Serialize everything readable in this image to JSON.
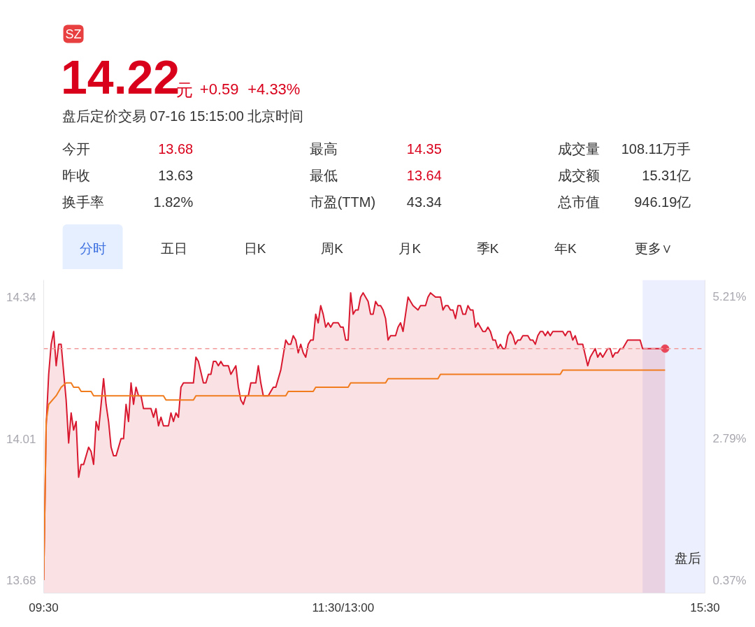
{
  "chart_data": {
    "type": "area",
    "annotations": [
      "SZ",
      "14.22",
      "元",
      "+0.59",
      "+4.33%",
      "盘后定价交易 07-16 15:15:00 北京时间",
      "今开",
      "13.68",
      "最高",
      "14.35",
      "成交量",
      "108.11万手",
      "昨收",
      "13.63",
      "最低",
      "13.64",
      "成交额",
      "15.31亿",
      "换手率",
      "1.82%",
      "市盈(TTM)",
      "43.34",
      "总市值",
      "946.19亿",
      "分时",
      "五日",
      "日K",
      "周K",
      "月K",
      "季K",
      "年K",
      "更多∨",
      "盘后"
    ],
    "categories": [
      "09:30",
      null,
      null,
      null,
      null,
      null,
      null,
      null,
      null,
      null,
      null,
      null,
      null,
      null,
      null,
      null,
      null,
      null,
      null,
      null,
      null,
      null,
      null,
      null,
      null,
      null,
      null,
      null,
      null,
      null,
      null,
      null,
      null,
      null,
      null,
      null,
      null,
      null,
      null,
      null,
      null,
      null,
      null,
      null,
      null,
      null,
      null,
      null,
      null,
      null,
      null,
      null,
      null,
      null,
      null,
      null,
      null,
      null,
      null,
      null,
      null,
      null,
      null,
      null,
      null,
      null,
      null,
      null,
      null,
      null,
      null,
      null,
      null,
      null,
      null,
      null,
      null,
      null,
      null,
      null,
      null,
      null,
      null,
      null,
      null,
      null,
      null,
      null,
      null,
      null,
      null,
      null,
      null,
      null,
      null,
      null,
      null,
      null,
      null,
      null,
      null,
      null,
      null,
      null,
      null,
      null,
      null,
      null,
      null,
      null,
      null,
      null,
      null,
      null,
      null,
      null,
      null,
      null,
      null,
      null,
      "11:30/13:00",
      null,
      null,
      null,
      null,
      null,
      null,
      null,
      null,
      null,
      null,
      null,
      null,
      null,
      null,
      null,
      null,
      null,
      null,
      null,
      null,
      null,
      null,
      null,
      null,
      null,
      null,
      null,
      null,
      null,
      null,
      null,
      null,
      null,
      null,
      null,
      null,
      null,
      null,
      null,
      null,
      null,
      null,
      null,
      null,
      null,
      null,
      null,
      null,
      null,
      null,
      null,
      null,
      null,
      null,
      null,
      null,
      null,
      null,
      null,
      null,
      null,
      null,
      null,
      null,
      null,
      null,
      null,
      null,
      null,
      null,
      null,
      null,
      null,
      null,
      null,
      null,
      null,
      null,
      null,
      null,
      null,
      null,
      null,
      null,
      null,
      null,
      null,
      null,
      null,
      null,
      null,
      null,
      null,
      null,
      null,
      null,
      null,
      null,
      null,
      null,
      null,
      null,
      null,
      null,
      null,
      null,
      null,
      null,
      null,
      null,
      null,
      null,
      null,
      null,
      null,
      null,
      null,
      null,
      null,
      null,
      null,
      null,
      null,
      null,
      null,
      null,
      null,
      null,
      null,
      null,
      null,
      null,
      null,
      null,
      null,
      null,
      null,
      null,
      null,
      null,
      null,
      null,
      null,
      null,
      "15:30"
    ],
    "ylim": [
      13.65,
      14.38
    ],
    "yticks": [
      13.68,
      14.01,
      14.34
    ],
    "y2lim": [
      0.15,
      5.5
    ],
    "y2ticks": [
      {
        "value": 0.37,
        "label": "0.37%"
      },
      {
        "value": 2.79,
        "label": "2.79%"
      },
      {
        "value": 5.21,
        "label": "5.21%"
      }
    ],
    "grid": false,
    "ref_lines": [
      {
        "axis": "y",
        "value": 14.22,
        "color": "#f29a9a",
        "line_style": "dashed"
      }
    ],
    "series": [
      {
        "color": "#d9192f",
        "values": [
          13.68,
          14.04,
          14.16,
          14.23,
          14.26,
          14.18,
          14.23,
          14.23,
          null,
          14.1,
          14.0,
          14.07,
          14.03,
          14.05,
          13.92,
          13.95,
          13.95,
          null,
          13.99,
          13.98,
          13.95,
          14.05,
          14.03,
          null,
          14.15,
          14.09,
          14.05,
          13.99,
          13.97,
          13.97,
          null,
          14.01,
          14.01,
          14.09,
          14.05,
          14.14,
          14.09,
          14.13,
          14.11,
          14.11,
          14.08,
          14.08,
          14.08,
          14.08,
          14.06,
          14.08,
          14.04,
          14.06,
          14.04,
          null,
          14.04,
          14.07,
          14.05,
          14.07,
          14.06,
          14.13,
          14.14,
          14.14,
          14.14,
          14.14,
          14.14,
          14.2,
          14.19,
          null,
          14.14,
          14.14,
          14.16,
          14.16,
          14.19,
          14.19,
          14.18,
          14.19,
          14.18,
          null,
          14.18,
          14.16,
          null,
          14.18,
          14.13,
          14.1,
          14.09,
          14.11,
          14.11,
          14.14,
          null,
          14.14,
          14.18,
          14.14,
          14.11,
          null,
          14.11,
          14.12,
          14.13,
          14.13,
          null,
          14.17,
          null,
          14.24,
          14.23,
          14.23,
          14.25,
          14.24,
          14.21,
          14.23,
          14.21,
          14.2,
          14.23,
          14.24,
          14.24,
          14.3,
          14.28,
          14.32,
          14.3,
          14.27,
          14.28,
          14.27,
          14.28,
          null,
          14.28,
          14.27,
          14.27,
          14.24,
          14.24,
          14.35,
          14.3,
          14.31,
          14.31,
          14.34,
          14.35,
          null,
          14.33,
          14.3,
          14.3,
          14.33,
          14.32,
          14.32,
          14.31,
          14.29,
          14.24,
          14.25,
          null,
          14.25,
          14.27,
          14.28,
          14.26,
          null,
          14.34,
          14.33,
          14.32,
          null,
          14.31,
          14.32,
          null,
          14.32,
          14.34,
          14.35,
          null,
          14.34,
          null,
          14.34,
          14.31,
          14.32,
          14.32,
          14.31,
          14.31,
          14.29,
          14.32,
          14.32,
          14.3,
          14.3,
          14.32,
          14.31,
          14.31,
          14.27,
          14.28,
          null,
          14.26,
          14.26,
          14.27,
          14.26,
          14.24,
          14.24,
          14.22,
          14.23,
          14.22,
          14.22,
          14.25,
          14.26,
          14.25,
          14.23,
          14.24,
          14.24,
          14.25,
          null,
          14.25,
          14.24,
          14.24,
          14.23,
          14.25,
          14.26,
          14.26,
          14.25,
          14.26,
          14.25,
          14.26,
          14.26,
          14.26,
          14.26,
          14.26,
          14.25,
          14.26,
          14.26,
          14.24,
          14.25,
          14.23,
          null,
          14.23,
          null,
          14.18,
          14.2,
          null,
          14.22,
          14.2,
          14.21,
          14.2,
          null,
          14.22,
          14.22,
          14.2,
          14.21,
          14.21,
          14.22,
          14.22,
          null,
          14.24,
          14.24,
          14.24,
          14.24,
          14.24,
          14.24,
          14.22,
          14.22,
          14.22,
          14.22,
          14.22,
          14.22,
          14.22,
          14.22,
          14.22,
          14.22,
          null,
          null,
          null,
          null,
          null,
          null,
          null,
          null,
          null,
          null,
          null,
          null,
          null,
          null,
          null,
          null
        ]
      },
      {
        "type": "line",
        "color": "#f07c1e",
        "values": [
          13.68,
          14.05,
          14.09,
          null,
          null,
          14.11,
          null,
          14.13,
          null,
          14.14,
          14.14,
          14.14,
          14.13,
          14.13,
          14.13,
          14.12,
          14.12,
          14.12,
          14.12,
          14.12,
          14.11,
          14.11,
          14.11,
          14.11,
          14.11,
          14.11,
          14.11,
          14.11,
          14.11,
          14.11,
          14.11,
          14.11,
          14.11,
          14.11,
          14.11,
          14.11,
          14.11,
          14.11,
          14.11,
          14.11,
          14.11,
          14.11,
          14.11,
          14.11,
          14.11,
          14.11,
          14.11,
          14.11,
          14.11,
          14.1,
          14.1,
          14.1,
          14.1,
          14.1,
          14.1,
          14.1,
          14.1,
          14.1,
          14.1,
          14.1,
          14.1,
          14.11,
          14.11,
          14.11,
          14.11,
          14.11,
          14.11,
          14.11,
          14.11,
          14.11,
          14.11,
          14.11,
          14.11,
          14.11,
          14.11,
          14.11,
          14.11,
          14.11,
          14.11,
          14.11,
          14.11,
          14.11,
          14.11,
          14.11,
          14.11,
          14.11,
          14.11,
          14.11,
          14.11,
          14.11,
          14.11,
          14.11,
          14.11,
          14.11,
          14.11,
          14.11,
          14.11,
          14.11,
          14.12,
          14.12,
          14.12,
          14.12,
          14.12,
          14.12,
          14.12,
          14.12,
          14.12,
          14.12,
          14.12,
          14.13,
          14.13,
          14.13,
          14.13,
          14.13,
          14.13,
          14.13,
          14.13,
          14.13,
          14.13,
          14.13,
          14.13,
          14.13,
          14.13,
          14.14,
          14.14,
          14.14,
          14.14,
          14.14,
          14.14,
          14.14,
          14.14,
          14.14,
          14.14,
          14.14,
          14.14,
          14.14,
          14.14,
          14.14,
          14.15,
          14.15,
          14.15,
          14.15,
          14.15,
          14.15,
          14.15,
          14.15,
          14.15,
          14.15,
          14.15,
          14.15,
          14.15,
          14.15,
          14.15,
          14.15,
          14.15,
          14.15,
          14.15,
          14.15,
          14.15,
          14.16,
          14.16,
          14.16,
          14.16,
          14.16,
          14.16,
          14.16,
          14.16,
          14.16,
          14.16,
          14.16,
          14.16,
          14.16,
          14.16,
          14.16,
          14.16,
          14.16,
          14.16,
          14.16,
          14.16,
          14.16,
          14.16,
          14.16,
          14.16,
          14.16,
          14.16,
          14.16,
          14.16,
          14.16,
          14.16,
          14.16,
          14.16,
          14.16,
          14.16,
          14.16,
          14.16,
          14.16,
          14.16,
          14.16,
          14.16,
          14.16,
          14.16,
          14.16,
          14.16,
          14.16,
          14.16,
          14.16,
          14.16,
          14.16,
          14.17,
          14.17,
          14.17,
          14.17,
          14.17,
          14.17,
          14.17,
          14.17,
          14.17,
          14.17,
          14.17,
          14.17,
          14.17,
          14.17,
          14.17,
          14.17,
          14.17,
          14.17,
          14.17,
          14.17,
          14.17,
          14.17,
          14.17,
          14.17,
          14.17,
          14.17,
          14.17,
          14.17,
          14.17,
          14.17,
          14.17,
          14.17,
          14.17,
          14.17,
          14.17,
          14.17,
          14.17,
          14.17,
          14.17,
          14.17,
          14.17,
          14.17,
          null,
          null,
          null,
          null,
          null,
          null,
          null,
          null,
          null,
          null,
          null,
          null,
          null,
          null,
          null,
          null
        ]
      },
      {
        "type": "scatter",
        "color": "#e8475a",
        "values": [
          null,
          null,
          null,
          null,
          null,
          null,
          null,
          null,
          null,
          null,
          null,
          null,
          null,
          null,
          null,
          null,
          null,
          null,
          null,
          null,
          null,
          null,
          null,
          null,
          null,
          null,
          null,
          null,
          null,
          null,
          null,
          null,
          null,
          null,
          null,
          null,
          null,
          null,
          null,
          null,
          null,
          null,
          null,
          null,
          null,
          null,
          null,
          null,
          null,
          null,
          null,
          null,
          null,
          null,
          null,
          null,
          null,
          null,
          null,
          null,
          null,
          null,
          null,
          null,
          null,
          null,
          null,
          null,
          null,
          null,
          null,
          null,
          null,
          null,
          null,
          null,
          null,
          null,
          null,
          null,
          null,
          null,
          null,
          null,
          null,
          null,
          null,
          null,
          null,
          null,
          null,
          null,
          null,
          null,
          null,
          null,
          null,
          null,
          null,
          null,
          null,
          null,
          null,
          null,
          null,
          null,
          null,
          null,
          null,
          null,
          null,
          null,
          null,
          null,
          null,
          null,
          null,
          null,
          null,
          null,
          null,
          null,
          null,
          null,
          null,
          null,
          null,
          null,
          null,
          null,
          null,
          null,
          null,
          null,
          null,
          null,
          null,
          null,
          null,
          null,
          null,
          null,
          null,
          null,
          null,
          null,
          null,
          null,
          null,
          null,
          null,
          null,
          null,
          null,
          null,
          null,
          null,
          null,
          null,
          null,
          null,
          null,
          null,
          null,
          null,
          null,
          null,
          null,
          null,
          null,
          null,
          null,
          null,
          null,
          null,
          null,
          null,
          null,
          null,
          null,
          null,
          null,
          null,
          null,
          null,
          null,
          null,
          null,
          null,
          null,
          null,
          null,
          null,
          null,
          null,
          null,
          null,
          null,
          null,
          null,
          null,
          null,
          null,
          null,
          null,
          null,
          null,
          null,
          null,
          null,
          null,
          null,
          null,
          null,
          null,
          null,
          null,
          null,
          null,
          null,
          null,
          null,
          null,
          null,
          null,
          null,
          null,
          null,
          null,
          null,
          null,
          null,
          null,
          null,
          null,
          null,
          null,
          null,
          null,
          null,
          null,
          null,
          null,
          null,
          null,
          null,
          null,
          null,
          null,
          14.22,
          null,
          null,
          null,
          null,
          null,
          null,
          null,
          null,
          null,
          null,
          null,
          null,
          null,
          null,
          null,
          null
        ]
      }
    ]
  }
}
